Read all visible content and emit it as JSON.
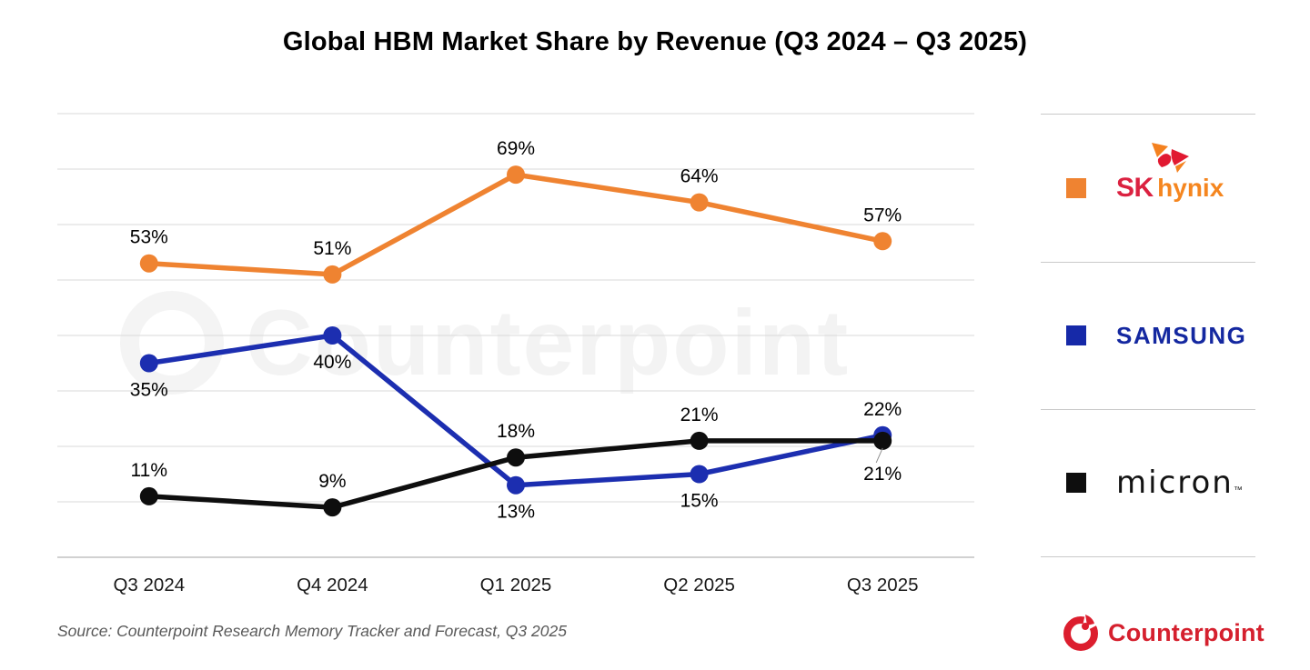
{
  "chart_data": {
    "type": "line",
    "title": "Global HBM Market Share by Revenue (Q3 2024 – Q3 2025)",
    "categories": [
      "Q3 2024",
      "Q4 2024",
      "Q1 2025",
      "Q2 2025",
      "Q3 2025"
    ],
    "series": [
      {
        "name": "SK hynix",
        "color": "#EF8331",
        "values": [
          53,
          51,
          69,
          64,
          57
        ],
        "label_positions": [
          "above",
          "above",
          "above",
          "above",
          "above"
        ]
      },
      {
        "name": "Samsung",
        "color": "#1C2EB0",
        "values": [
          35,
          40,
          13,
          15,
          22
        ],
        "label_positions": [
          "below",
          "below",
          "below",
          "below",
          "above"
        ]
      },
      {
        "name": "Micron",
        "color": "#0E0E0E",
        "values": [
          11,
          9,
          18,
          21,
          21
        ],
        "label_positions": [
          "above",
          "above",
          "above",
          "above",
          "below-leader"
        ]
      }
    ],
    "value_suffix": "%",
    "xlabel": "",
    "ylabel": "",
    "ylim": [
      0,
      80
    ],
    "grid_step": 10,
    "grid": true,
    "legend_position": "right"
  },
  "legend": {
    "items": [
      {
        "id": "sk-hynix",
        "swatch_color": "#EF8331",
        "wordmark": {
          "sk": "SK",
          "hynix": "hynix"
        }
      },
      {
        "id": "samsung",
        "swatch_color": "#1629a8",
        "label": "SAMSUNG"
      },
      {
        "id": "micron",
        "swatch_color": "#0e0e0e",
        "label": "micron",
        "tm": "™"
      }
    ]
  },
  "watermark": {
    "text": "Counterpoint"
  },
  "footer": {
    "source": "Source: Counterpoint Research Memory Tracker and Forecast, Q3 2025",
    "brand_label": "Counterpoint"
  },
  "colors": {
    "grid": "#DADADA",
    "axis": "#C2C2C2",
    "value_label": "#000000",
    "x_tick_label": "#191919",
    "counterpoint_red": "#D5202E",
    "samsung_blue": "#1428A0",
    "sk_red": "#DB2140",
    "sk_hynix_orange": "#F5861F"
  }
}
